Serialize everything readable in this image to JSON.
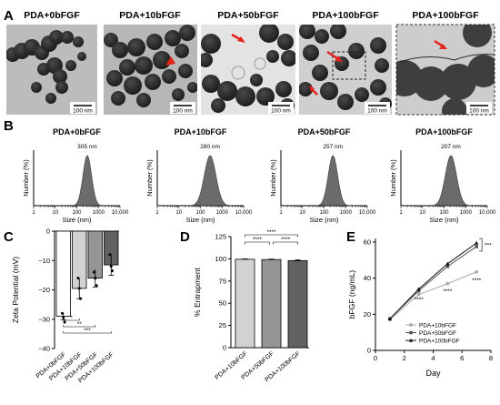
{
  "panel_letters": [
    "A",
    "B",
    "C",
    "D",
    "E"
  ],
  "panel_a": {
    "titles": [
      "PDA+0bFGF",
      "PDA+10bFGF",
      "PDA+50bFGF",
      "PDA+100bFGF",
      "PDA+100bFGF"
    ],
    "scale_bars": [
      "100 nm",
      "100 nm",
      "100 nm",
      "100 nm",
      "100 nm"
    ]
  },
  "chart_data": [
    {
      "panel": "B",
      "type": "area",
      "title": "PDA+0bFGF",
      "xlabel": "Size (nm)",
      "ylabel": "Number (%)",
      "x_scale": "log",
      "xlim": [
        1,
        10000
      ],
      "xticks": [
        "1",
        "10",
        "100",
        "1000",
        "10,000"
      ],
      "peak_label": "305 nm",
      "peak_x": 305,
      "rel_width": 0.2
    },
    {
      "panel": "B",
      "type": "area",
      "title": "PDA+10bFGF",
      "xlabel": "Size (nm)",
      "ylabel": "Number (%)",
      "x_scale": "log",
      "xlim": [
        1,
        10000
      ],
      "xticks": [
        "1",
        "10",
        "100",
        "1000",
        "10,000"
      ],
      "peak_label": "280 nm",
      "peak_x": 280,
      "rel_width": 0.27
    },
    {
      "panel": "B",
      "type": "area",
      "title": "PDA+50bFGF",
      "xlabel": "Size (nm)",
      "ylabel": "Number (%)",
      "x_scale": "log",
      "xlim": [
        1,
        10000
      ],
      "xticks": [
        "1",
        "10",
        "100",
        "1000",
        "10,000"
      ],
      "peak_label": "257 nm",
      "peak_x": 257,
      "rel_width": 0.22
    },
    {
      "panel": "B",
      "type": "area",
      "title": "PDA+100bFGF",
      "xlabel": "Size (nm)",
      "ylabel": "Number (%)",
      "x_scale": "log",
      "xlim": [
        1,
        10000
      ],
      "xticks": [
        "1",
        "10",
        "100",
        "1000",
        "10,000"
      ],
      "peak_label": "207 nm",
      "peak_x": 207,
      "rel_width": 0.26
    },
    {
      "panel": "C",
      "type": "bar",
      "ylabel": "Zeta Potential (mV)",
      "ylim": [
        -40,
        0
      ],
      "yticks": [
        0,
        -10,
        -20,
        -30,
        -40
      ],
      "categories": [
        "PDA+0bFGF",
        "PDA+10bFGF",
        "PDA+50bFGF",
        "PDA+100bFGF"
      ],
      "values": [
        -29,
        -19.5,
        -16,
        -11.5
      ],
      "errors": [
        1.2,
        3.5,
        3.0,
        3.5
      ],
      "colors": [
        "#ffffff",
        "#d2d2d2",
        "#959595",
        "#616161"
      ],
      "points": [
        [
          -28.0,
          -29.5,
          -31.0
        ],
        [
          -16.0,
          -19.5,
          -23.0
        ],
        [
          -14.0,
          -16.0,
          -18.5
        ],
        [
          -8.0,
          -12.0,
          -13.5
        ]
      ],
      "sig": [
        {
          "from": 0,
          "to": 1,
          "label": "*"
        },
        {
          "from": 0,
          "to": 2,
          "label": "**"
        },
        {
          "from": 0,
          "to": 3,
          "label": "***"
        }
      ]
    },
    {
      "panel": "D",
      "type": "bar",
      "ylabel": "% Entrapment",
      "ylim": [
        0,
        125
      ],
      "yticks": [
        0,
        25,
        50,
        75,
        100,
        125
      ],
      "categories": [
        "PDA+10bFGF",
        "PDA+50bFGF",
        "PDA+100bFGF"
      ],
      "values": [
        99.5,
        99.2,
        98.0
      ],
      "errors": [
        0.5,
        0.5,
        0.8
      ],
      "colors": [
        "#d2d2d2",
        "#959595",
        "#616161"
      ],
      "sig": [
        {
          "from": 0,
          "to": 1,
          "label": "****"
        },
        {
          "from": 1,
          "to": 2,
          "label": "****"
        },
        {
          "from": 0,
          "to": 2,
          "label": "****"
        }
      ]
    },
    {
      "panel": "E",
      "type": "line",
      "xlabel": "Day",
      "ylabel": "bFGF (ng/mL)",
      "xlim": [
        0,
        8
      ],
      "ylim": [
        0,
        60
      ],
      "xticks": [
        0,
        2,
        4,
        6,
        8
      ],
      "yticks": [
        0,
        20,
        40,
        60
      ],
      "x": [
        1,
        3,
        5,
        7
      ],
      "series": [
        {
          "name": "PDA+10bFGF",
          "values": [
            17,
            31,
            37,
            43.5
          ],
          "color": "#aaaaaa",
          "marker": "circle"
        },
        {
          "name": "PDA+50bFGF",
          "values": [
            17.5,
            33,
            46.5,
            57.5
          ],
          "color": "#555555",
          "marker": "square"
        },
        {
          "name": "PDA+100bFGF",
          "values": [
            17.5,
            34,
            48,
            59.5
          ],
          "color": "#111111",
          "marker": "triangle"
        }
      ],
      "annotations": [
        {
          "x": 3,
          "y": 28.5,
          "label": "****"
        },
        {
          "x": 5,
          "y": 33,
          "label": "****"
        },
        {
          "x": 7,
          "y": 39,
          "label": "****"
        },
        {
          "x": 7,
          "y": 58.5,
          "label": "***"
        }
      ]
    }
  ]
}
